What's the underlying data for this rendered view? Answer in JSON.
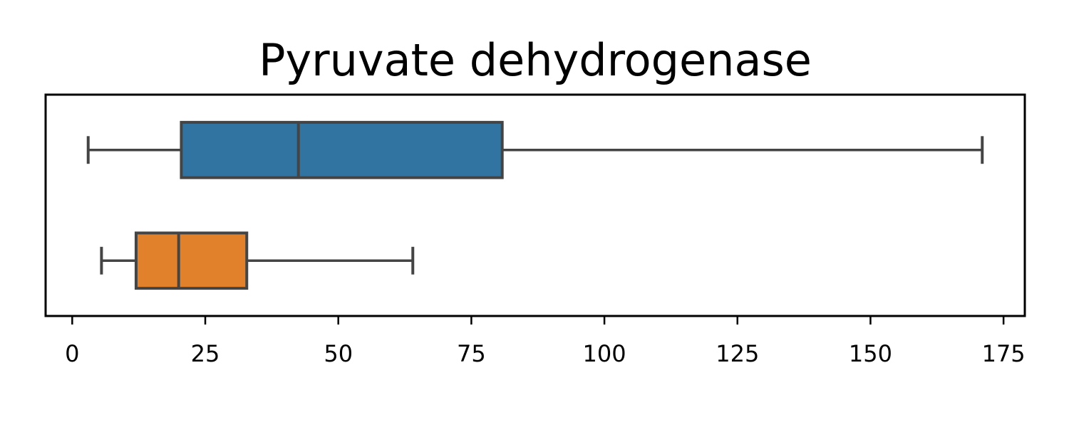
{
  "chart_data": {
    "type": "boxplot",
    "title": "Pyruvate dehydrogenase",
    "xlabel": "",
    "ylabel": "",
    "xlim": [
      -5,
      179
    ],
    "xticks": [
      0,
      25,
      50,
      75,
      100,
      125,
      150,
      175
    ],
    "orientation": "horizontal",
    "grid": false,
    "legend": "none",
    "series": [
      {
        "whisker_low": 3,
        "q1": 20.5,
        "median": 42.5,
        "q3": 80.8,
        "whisker_high": 171,
        "color": "#3274a1"
      },
      {
        "whisker_low": 5.5,
        "q1": 12,
        "median": 20,
        "q3": 32.8,
        "whisker_high": 64,
        "color": "#e1812c"
      }
    ]
  }
}
